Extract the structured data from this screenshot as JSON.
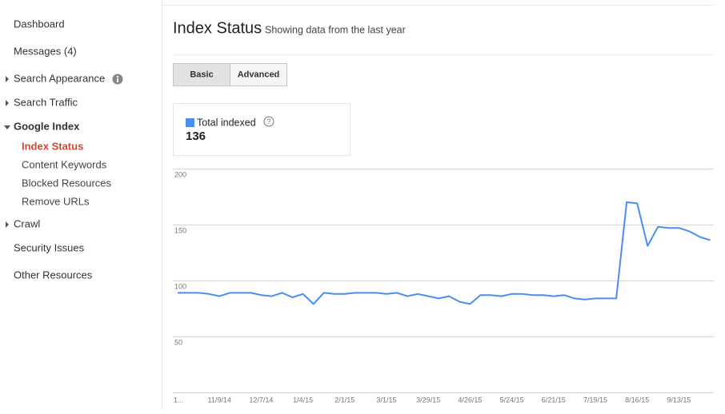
{
  "sidebar": {
    "items": [
      "Dashboard",
      "Messages (4)",
      "Search Appearance",
      "Search Traffic",
      "Google Index",
      "Crawl",
      "Security Issues",
      "Other Resources"
    ],
    "submenu": [
      "Index Status",
      "Content Keywords",
      "Blocked Resources",
      "Remove URLs"
    ]
  },
  "header": {
    "title": "Index Status",
    "subtitle": "Showing data from the last year"
  },
  "tabs": [
    "Basic",
    "Advanced"
  ],
  "summary": {
    "value": 136
  },
  "chart_data": {
    "type": "line",
    "categories": [
      "1...",
      null,
      null,
      null,
      "11/9/14",
      null,
      null,
      null,
      "12/7/14",
      null,
      null,
      null,
      "1/4/15",
      null,
      null,
      null,
      "2/1/15",
      null,
      null,
      null,
      "3/1/15",
      null,
      null,
      null,
      "3/29/15",
      null,
      null,
      null,
      "4/26/15",
      null,
      null,
      null,
      "5/24/15",
      null,
      null,
      null,
      "6/21/15",
      null,
      null,
      null,
      "7/19/15",
      null,
      null,
      null,
      "8/16/15",
      null,
      null,
      null,
      "9/13/15",
      null,
      null,
      null
    ],
    "series": [
      {
        "name": "Total indexed",
        "color": "#4a8ef0",
        "values": [
          89,
          89,
          89,
          88,
          86,
          89,
          89,
          89,
          87,
          86,
          89,
          85,
          88,
          79,
          89,
          88,
          88,
          89,
          89,
          89,
          88,
          89,
          86,
          88,
          86,
          84,
          86,
          81,
          79,
          87,
          87,
          86,
          88,
          88,
          87,
          87,
          86,
          87,
          84,
          83,
          84,
          84,
          84,
          170,
          169,
          131,
          148,
          147,
          147,
          144,
          139,
          136
        ]
      }
    ],
    "ylim": [
      0,
      200
    ],
    "yticks": [
      50,
      100,
      150,
      200
    ],
    "grid": true
  }
}
